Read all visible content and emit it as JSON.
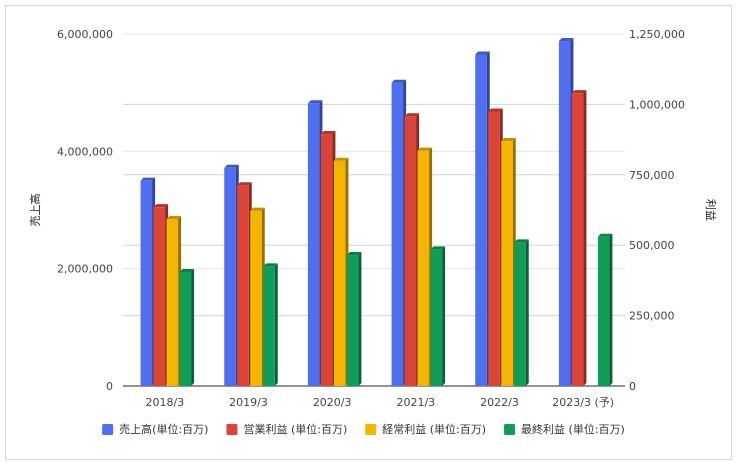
{
  "chart_data": {
    "type": "bar",
    "categories": [
      "2018/3",
      "2019/3",
      "2020/3",
      "2021/3",
      "2022/3",
      "2023/3 (予)"
    ],
    "series": [
      {
        "name": "売上高(単位:百万)",
        "axis": "left",
        "color": "#4f6ef0",
        "values": [
          3500000,
          3720000,
          4820000,
          5170000,
          5650000,
          5880000
        ]
      },
      {
        "name": "営業利益 (単位:百万)",
        "axis": "right",
        "color": "#db4437",
        "values": [
          635000,
          713000,
          895000,
          958000,
          975000,
          1040000
        ]
      },
      {
        "name": "経常利益 (単位:百万)",
        "axis": "right",
        "color": "#f4b400",
        "values": [
          593000,
          623000,
          800000,
          836000,
          870000,
          null
        ]
      },
      {
        "name": "最終利益 (単位:百万)",
        "axis": "right",
        "color": "#0f9d58",
        "values": [
          405000,
          425000,
          465000,
          485000,
          510000,
          530000
        ]
      }
    ],
    "y_left": {
      "label": "売上高",
      "range": [
        0,
        6000000
      ],
      "ticks": [
        0,
        2000000,
        4000000,
        6000000
      ],
      "tick_labels": [
        "0",
        "2,000,000",
        "4,000,000",
        "6,000,000"
      ]
    },
    "y_right": {
      "label": "利益",
      "range": [
        0,
        1250000
      ],
      "ticks": [
        0,
        250000,
        500000,
        750000,
        1000000,
        1250000
      ],
      "tick_labels": [
        "0",
        "250,000",
        "500,000",
        "750,000",
        "1,000,000",
        "1,250,000"
      ]
    },
    "grid": true,
    "legend_position": "bottom",
    "style": "3d-bar"
  }
}
